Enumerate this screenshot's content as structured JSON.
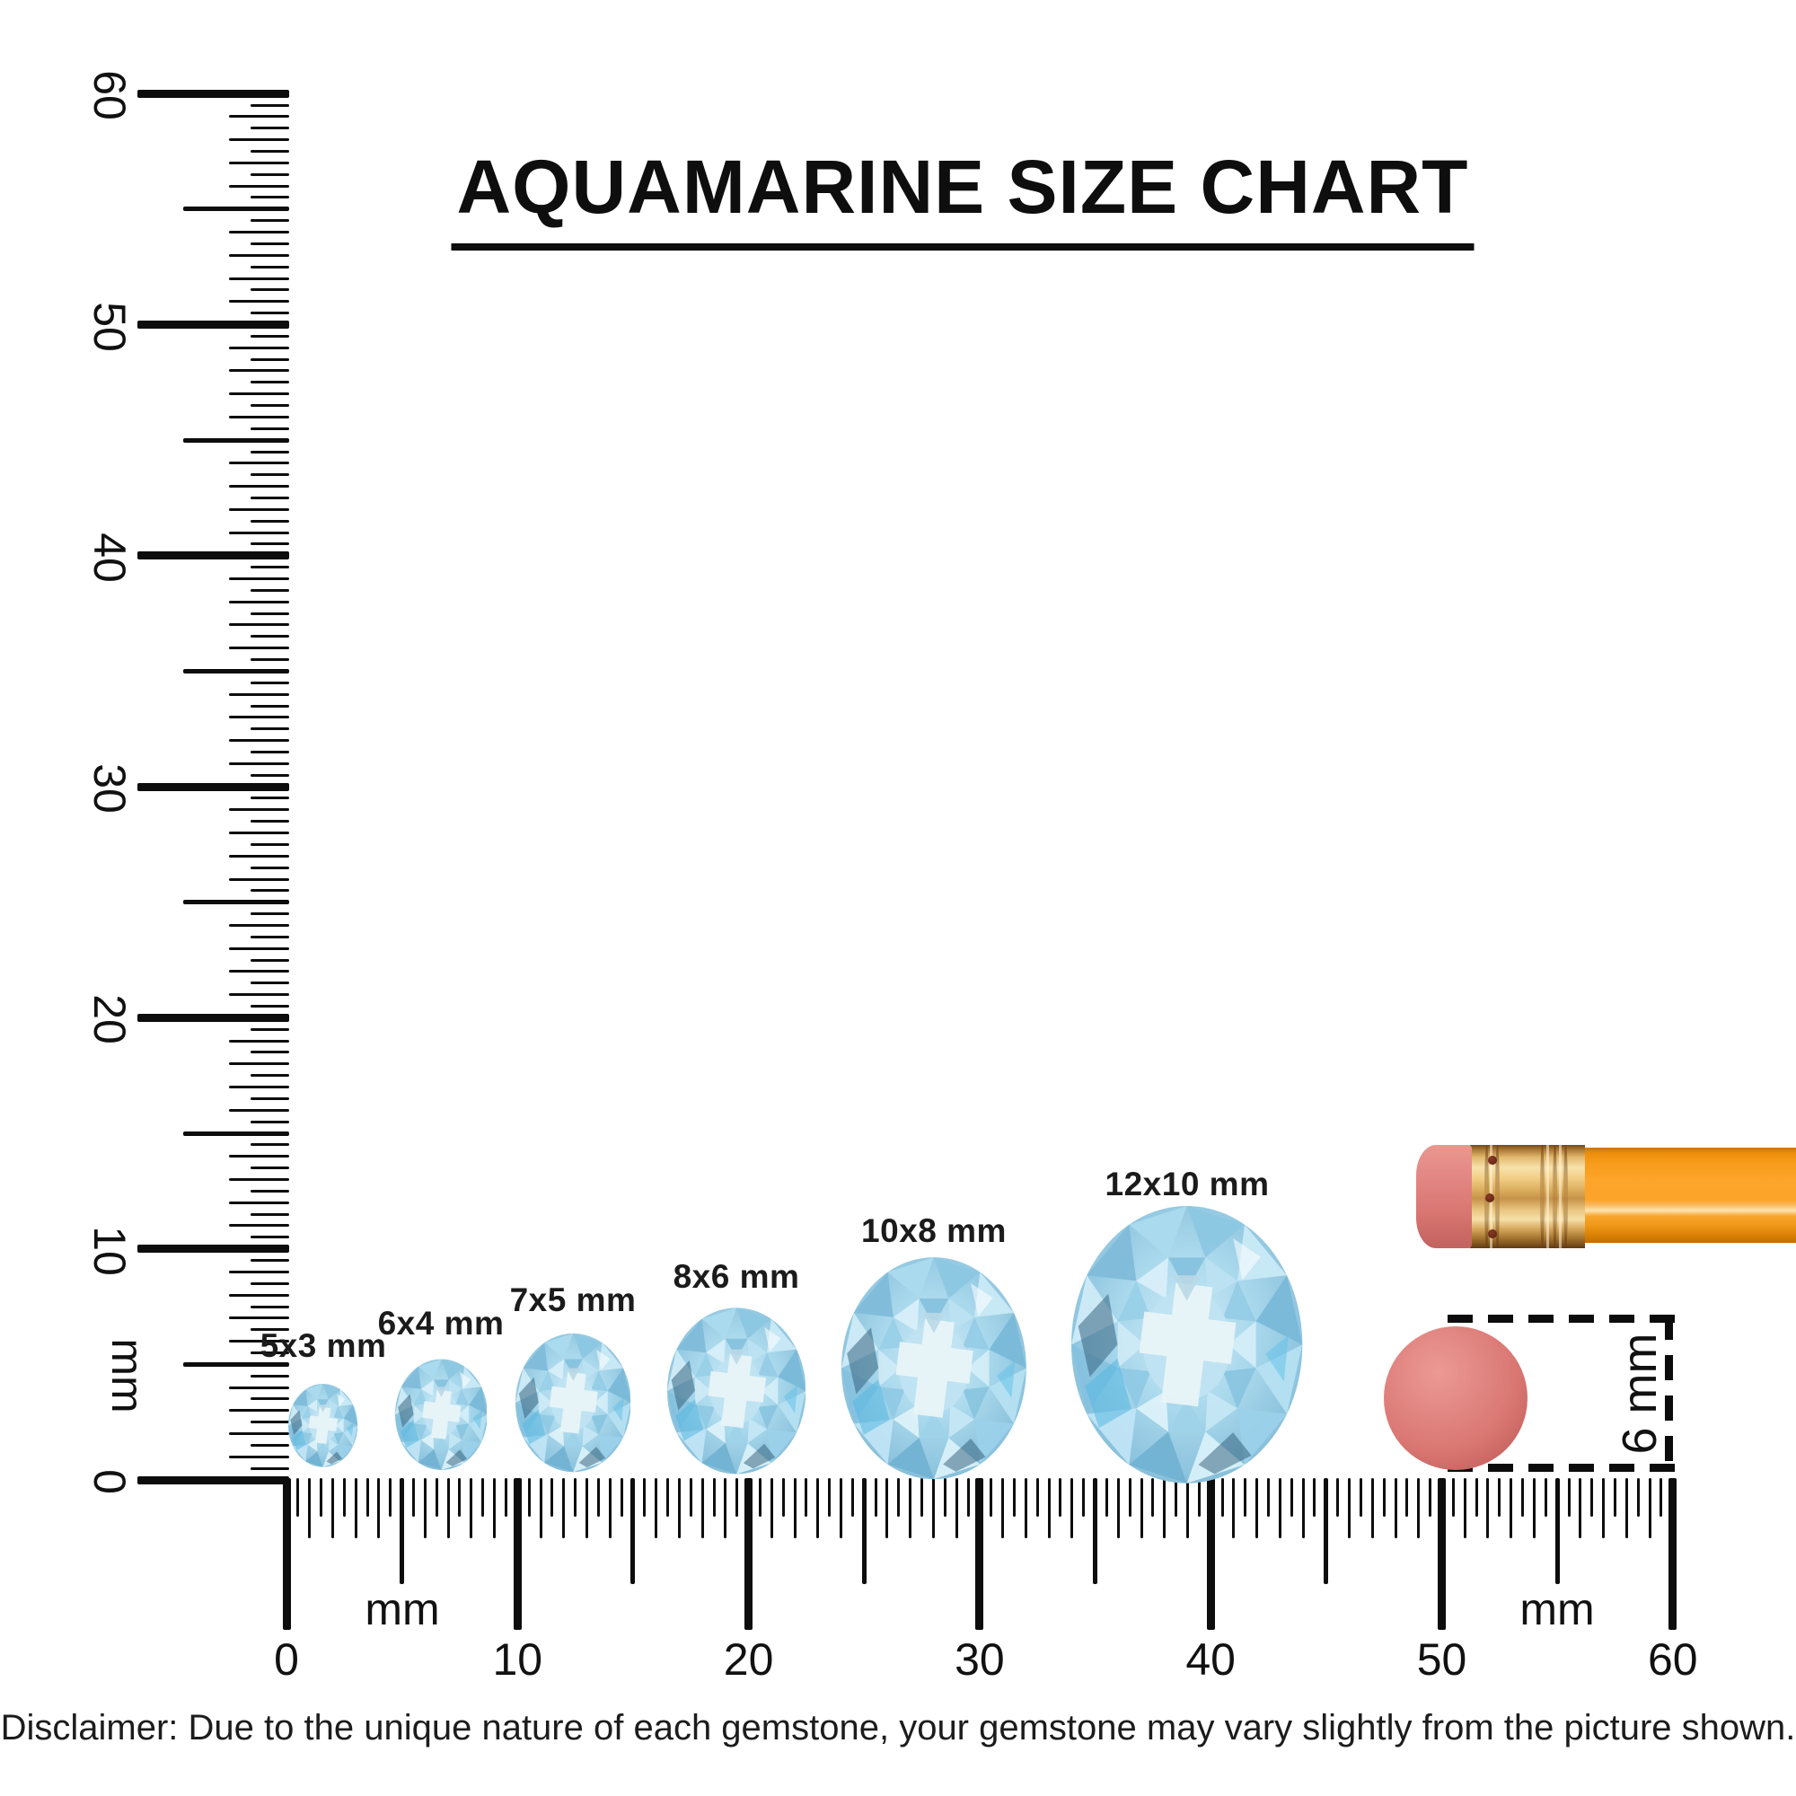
{
  "title": "AQUAMARINE SIZE CHART",
  "rulers": {
    "unit": "mm",
    "numbers": [
      "0",
      "10",
      "20",
      "30",
      "40",
      "50",
      "60"
    ],
    "max_mm": 60,
    "minor_step_mm": 0.5
  },
  "gems": [
    {
      "label": "5x3 mm",
      "height_mm": 5,
      "width_mm": 3
    },
    {
      "label": "6x4 mm",
      "height_mm": 6,
      "width_mm": 4
    },
    {
      "label": "7x5 mm",
      "height_mm": 7,
      "width_mm": 5
    },
    {
      "label": "8x6 mm",
      "height_mm": 8,
      "width_mm": 6
    },
    {
      "label": "10x8 mm",
      "height_mm": 10,
      "width_mm": 8
    },
    {
      "label": "12x10 mm",
      "height_mm": 12,
      "width_mm": 10
    }
  ],
  "reference_objects": {
    "pencil": "pencil",
    "eraser_dot_diameter_label": "6 mm"
  },
  "disclaimer": "Disclaimer: Due to the unique nature of each gemstone, your gemstone may vary slightly from the picture shown.",
  "colors": {
    "gem_base": "#a9d8ec",
    "gem_highlight": "#e9f4f7",
    "gem_dark_facet": "#39657f",
    "pencil_body": "#f89d1d",
    "pencil_ferrule": "#e3b96e",
    "eraser_pink": "#dd7b77",
    "ink": "#111111"
  }
}
